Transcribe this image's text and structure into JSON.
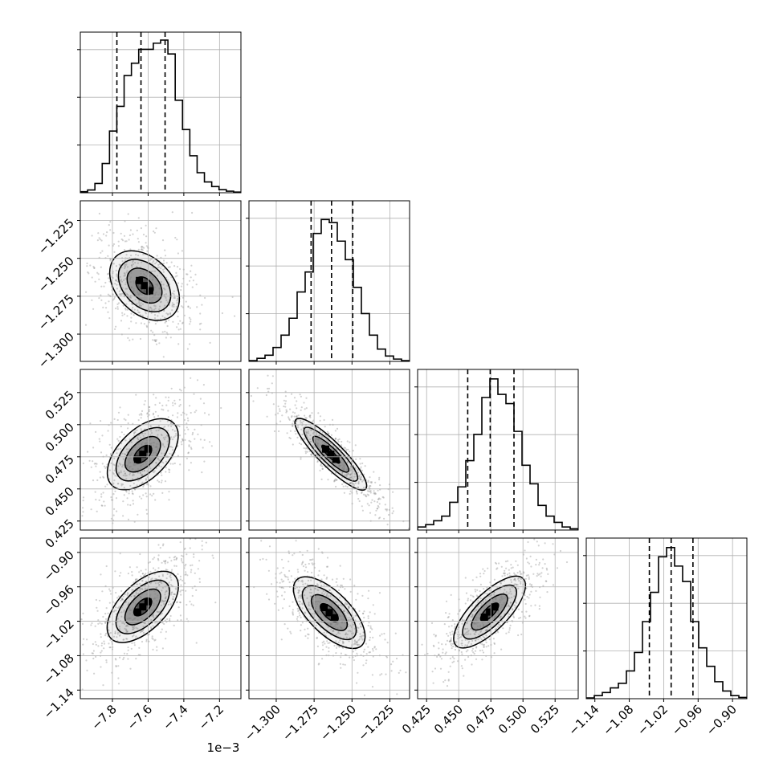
{
  "chart_data": {
    "type": "corner",
    "parameters": [
      {
        "range": [
          -7.98,
          -7.08
        ],
        "ticks": [
          -7.8,
          -7.6,
          -7.4,
          -7.2
        ],
        "tick_labels": [
          "−7.8",
          "−7.6",
          "−7.4",
          "−7.2"
        ],
        "offset_text": "1e−3",
        "y_ticks": [],
        "y_tick_labels": [],
        "quantiles": [
          -7.775,
          -7.64,
          -7.505
        ],
        "hist_bins": [
          0.007,
          0.018,
          0.06,
          0.19,
          0.4,
          0.56,
          0.76,
          0.84,
          0.93,
          0.93,
          0.97,
          0.99,
          0.9,
          0.6,
          0.41,
          0.24,
          0.13,
          0.07,
          0.04,
          0.02,
          0.01,
          0.004
        ]
      },
      {
        "range": [
          -1.318,
          -1.212
        ],
        "ticks": [
          -1.3,
          -1.275,
          -1.25,
          -1.225
        ],
        "tick_labels": [
          "−1.300",
          "−1.275",
          "−1.250",
          "−1.225"
        ],
        "y_ticks": [
          -1.3,
          -1.275,
          -1.25,
          -1.225
        ],
        "y_tick_labels": [
          "−1.300",
          "−1.275",
          "−1.250",
          "−1.225"
        ],
        "quantiles": [
          -1.277,
          -1.2635,
          -1.2495
        ],
        "hist_bins": [
          0.005,
          0.02,
          0.04,
          0.09,
          0.17,
          0.28,
          0.45,
          0.58,
          0.83,
          0.92,
          0.9,
          0.78,
          0.66,
          0.48,
          0.31,
          0.17,
          0.08,
          0.035,
          0.015,
          0.005
        ]
      },
      {
        "range": [
          0.418,
          0.543
        ],
        "ticks": [
          0.425,
          0.45,
          0.475,
          0.5,
          0.525
        ],
        "tick_labels": [
          "0.425",
          "0.450",
          "0.475",
          "0.500",
          "0.525"
        ],
        "y_ticks": [
          0.425,
          0.45,
          0.475,
          0.5,
          0.525
        ],
        "y_tick_labels": [
          "0.425",
          "0.450",
          "0.475",
          "0.500",
          "0.525"
        ],
        "quantiles": [
          0.457,
          0.4745,
          0.493
        ],
        "hist_bins": [
          0.02,
          0.035,
          0.06,
          0.09,
          0.18,
          0.28,
          0.45,
          0.62,
          0.86,
          0.98,
          0.88,
          0.82,
          0.64,
          0.42,
          0.3,
          0.16,
          0.09,
          0.05,
          0.02,
          0.008
        ]
      },
      {
        "range": [
          -1.155,
          -0.875
        ],
        "ticks": [
          -1.14,
          -1.08,
          -1.02,
          -0.96,
          -0.9
        ],
        "tick_labels": [
          "−1.14",
          "−1.08",
          "−1.02",
          "−0.96",
          "−0.90"
        ],
        "y_ticks": [
          -1.14,
          -1.08,
          -1.02,
          -0.96,
          -0.9
        ],
        "y_tick_labels": [
          "−1.14",
          "−1.08",
          "−1.02",
          "−0.96",
          "−0.90"
        ],
        "quantiles": [
          -1.045,
          -1.007,
          -0.969
        ],
        "hist_bins": [
          0.005,
          0.02,
          0.04,
          0.07,
          0.1,
          0.18,
          0.3,
          0.5,
          0.69,
          0.92,
          0.98,
          0.86,
          0.76,
          0.5,
          0.33,
          0.21,
          0.11,
          0.05,
          0.02,
          0.008
        ]
      }
    ],
    "pairs": [
      {
        "x": 0,
        "y": 1,
        "peak": [
          -7.62,
          -1.268
        ],
        "rho": -0.55
      },
      {
        "x": 0,
        "y": 2,
        "peak": [
          -7.63,
          0.477
        ],
        "rho": 0.7
      },
      {
        "x": 1,
        "y": 2,
        "peak": [
          -1.264,
          0.477
        ],
        "rho": -0.97
      },
      {
        "x": 0,
        "y": 3,
        "peak": [
          -7.63,
          -0.995
        ],
        "rho": 0.75
      },
      {
        "x": 1,
        "y": 3,
        "peak": [
          -1.265,
          -1.005
        ],
        "rho": -0.82
      },
      {
        "x": 2,
        "y": 3,
        "peak": [
          0.474,
          -1.004
        ],
        "rho": 0.88
      }
    ],
    "grid": true,
    "colors": {
      "line": "#000000",
      "grid": "#b0b0b0",
      "scatter": "#7f7f7f"
    }
  }
}
